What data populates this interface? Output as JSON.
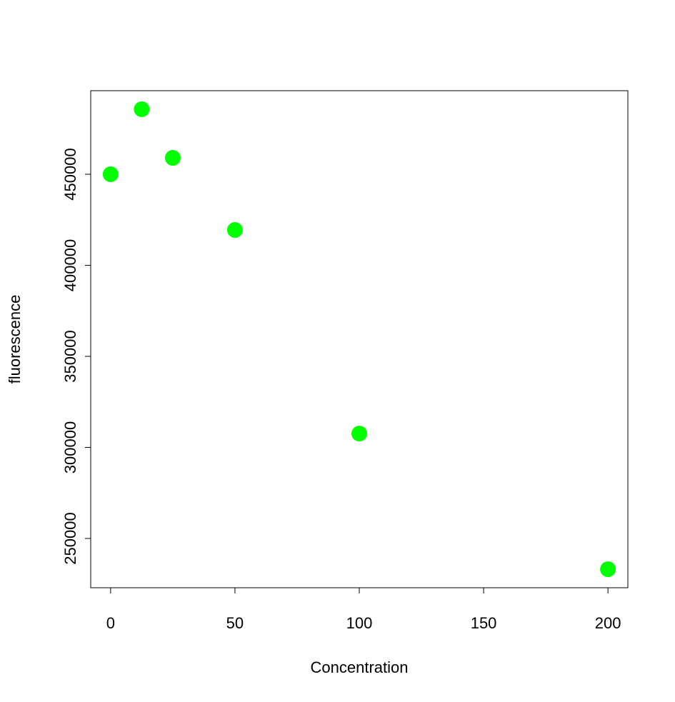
{
  "chart_data": {
    "type": "scatter",
    "x_label": "Concentration",
    "y_label": "fluorescence",
    "x": [
      0,
      12.5,
      25,
      50,
      100,
      200
    ],
    "series": [
      {
        "color": "#00ff00",
        "values": [
          450000,
          485700,
          459000,
          419400,
          307600,
          233100
        ]
      }
    ],
    "xlim": [
      -8,
      208
    ],
    "xticks": [
      0,
      50,
      100,
      150,
      200
    ],
    "ylim": [
      222940,
      495880
    ],
    "yticks": [
      250000,
      300000,
      350000,
      400000,
      450000
    ],
    "grid": false
  }
}
